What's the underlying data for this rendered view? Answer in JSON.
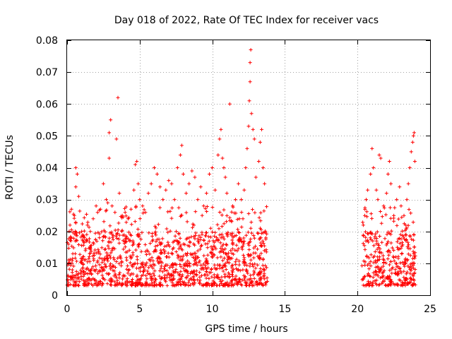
{
  "chart_data": {
    "type": "scatter",
    "title": "Day 018 of 2022, Rate Of TEC Index for receiver vacs",
    "xlabel": "GPS time / hours",
    "ylabel": "ROTI / TECUs",
    "xlim": [
      0,
      25
    ],
    "ylim": [
      0,
      0.08
    ],
    "xticks": [
      0,
      5,
      10,
      15,
      20,
      25
    ],
    "xtick_labels": [
      "0",
      "5",
      "10",
      "15",
      "20",
      "25"
    ],
    "yticks": [
      0,
      0.01,
      0.02,
      0.03,
      0.04,
      0.05,
      0.06,
      0.07,
      0.08
    ],
    "ytick_labels": [
      "0",
      "0.01",
      "0.02",
      "0.03",
      "0.04",
      "0.05",
      "0.06",
      "0.07",
      "0.08"
    ],
    "grid": true,
    "legend": false,
    "marker": "+",
    "color": "#ff0000",
    "series": [
      {
        "segments": [
          [
            0,
            13.8
          ],
          [
            20.3,
            24
          ]
        ],
        "typical_range": [
          0.003,
          0.02
        ],
        "points": [
          [
            0.1,
            0.016
          ],
          [
            0.2,
            0.022
          ],
          [
            0.3,
            0.027
          ],
          [
            0.5,
            0.025
          ],
          [
            0.6,
            0.034
          ],
          [
            0.6,
            0.04
          ],
          [
            0.7,
            0.038
          ],
          [
            0.8,
            0.031
          ],
          [
            1.0,
            0.02
          ],
          [
            1.2,
            0.018
          ],
          [
            1.4,
            0.022
          ],
          [
            1.6,
            0.02
          ],
          [
            1.8,
            0.024
          ],
          [
            2.0,
            0.028
          ],
          [
            2.1,
            0.026
          ],
          [
            2.3,
            0.027
          ],
          [
            2.5,
            0.035
          ],
          [
            2.7,
            0.03
          ],
          [
            2.8,
            0.029
          ],
          [
            2.9,
            0.043
          ],
          [
            2.9,
            0.051
          ],
          [
            3.0,
            0.055
          ],
          [
            3.1,
            0.028
          ],
          [
            3.3,
            0.026
          ],
          [
            3.4,
            0.049
          ],
          [
            3.5,
            0.062
          ],
          [
            3.6,
            0.032
          ],
          [
            3.8,
            0.025
          ],
          [
            4.0,
            0.026
          ],
          [
            4.2,
            0.024
          ],
          [
            4.4,
            0.027
          ],
          [
            4.6,
            0.033
          ],
          [
            4.7,
            0.041
          ],
          [
            4.8,
            0.042
          ],
          [
            4.9,
            0.035
          ],
          [
            5.0,
            0.03
          ],
          [
            5.2,
            0.028
          ],
          [
            5.4,
            0.026
          ],
          [
            5.6,
            0.032
          ],
          [
            5.8,
            0.035
          ],
          [
            6.0,
            0.04
          ],
          [
            6.2,
            0.038
          ],
          [
            6.4,
            0.034
          ],
          [
            6.6,
            0.03
          ],
          [
            6.8,
            0.033
          ],
          [
            7.0,
            0.036
          ],
          [
            7.2,
            0.035
          ],
          [
            7.4,
            0.03
          ],
          [
            7.6,
            0.04
          ],
          [
            7.8,
            0.044
          ],
          [
            7.9,
            0.047
          ],
          [
            8.0,
            0.038
          ],
          [
            8.2,
            0.032
          ],
          [
            8.4,
            0.035
          ],
          [
            8.6,
            0.039
          ],
          [
            8.8,
            0.037
          ],
          [
            9.0,
            0.03
          ],
          [
            9.2,
            0.034
          ],
          [
            9.4,
            0.028
          ],
          [
            9.6,
            0.032
          ],
          [
            9.8,
            0.038
          ],
          [
            10.0,
            0.04
          ],
          [
            10.2,
            0.033
          ],
          [
            10.4,
            0.044
          ],
          [
            10.5,
            0.049
          ],
          [
            10.6,
            0.052
          ],
          [
            10.7,
            0.043
          ],
          [
            10.8,
            0.04
          ],
          [
            10.9,
            0.037
          ],
          [
            11.0,
            0.032
          ],
          [
            11.2,
            0.06
          ],
          [
            11.4,
            0.028
          ],
          [
            11.6,
            0.03
          ],
          [
            11.8,
            0.035
          ],
          [
            12.0,
            0.03
          ],
          [
            12.2,
            0.033
          ],
          [
            12.3,
            0.04
          ],
          [
            12.4,
            0.046
          ],
          [
            12.5,
            0.053
          ],
          [
            12.55,
            0.061
          ],
          [
            12.6,
            0.067
          ],
          [
            12.6,
            0.073
          ],
          [
            12.65,
            0.077
          ],
          [
            12.7,
            0.057
          ],
          [
            12.8,
            0.052
          ],
          [
            12.9,
            0.049
          ],
          [
            13.0,
            0.037
          ],
          [
            13.2,
            0.042
          ],
          [
            13.3,
            0.048
          ],
          [
            13.4,
            0.052
          ],
          [
            13.5,
            0.04
          ],
          [
            13.6,
            0.035
          ],
          [
            20.4,
            0.022
          ],
          [
            20.5,
            0.025
          ],
          [
            20.6,
            0.03
          ],
          [
            20.7,
            0.033
          ],
          [
            20.9,
            0.038
          ],
          [
            21.0,
            0.046
          ],
          [
            21.1,
            0.04
          ],
          [
            21.3,
            0.033
          ],
          [
            21.4,
            0.03
          ],
          [
            21.5,
            0.044
          ],
          [
            21.6,
            0.043
          ],
          [
            21.8,
            0.028
          ],
          [
            22.0,
            0.032
          ],
          [
            22.1,
            0.038
          ],
          [
            22.2,
            0.042
          ],
          [
            22.3,
            0.035
          ],
          [
            22.5,
            0.025
          ],
          [
            22.7,
            0.03
          ],
          [
            22.9,
            0.034
          ],
          [
            23.0,
            0.028
          ],
          [
            23.2,
            0.025
          ],
          [
            23.4,
            0.03
          ],
          [
            23.5,
            0.035
          ],
          [
            23.6,
            0.04
          ],
          [
            23.7,
            0.045
          ],
          [
            23.8,
            0.048
          ],
          [
            23.85,
            0.05
          ],
          [
            23.9,
            0.051
          ],
          [
            23.95,
            0.042
          ]
        ]
      }
    ]
  }
}
